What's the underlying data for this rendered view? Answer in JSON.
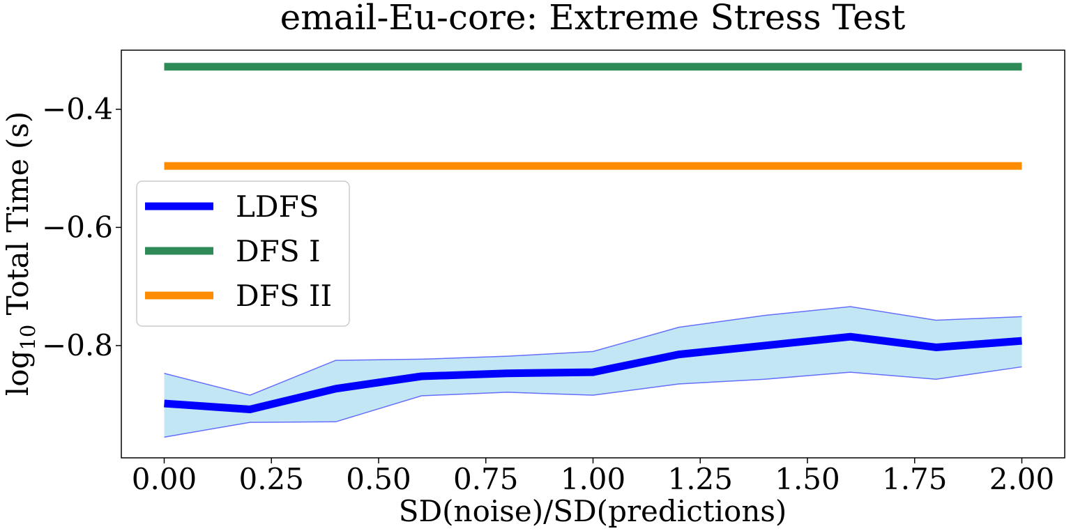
{
  "chart_data": {
    "type": "line",
    "title": "email-Eu-core: Extreme Stress Test",
    "xlabel": "SD(noise)/SD(predictions)",
    "ylabel_prefix": "log",
    "ylabel_subscript": "10",
    "ylabel_suffix": " Total Time (s)",
    "xlim": [
      -0.1,
      2.1
    ],
    "ylim": [
      -0.99,
      -0.3
    ],
    "xticks": [
      0.0,
      0.25,
      0.5,
      0.75,
      1.0,
      1.25,
      1.5,
      1.75,
      2.0
    ],
    "xtick_labels": [
      "0.00",
      "0.25",
      "0.50",
      "0.75",
      "1.00",
      "1.25",
      "1.50",
      "1.75",
      "2.00"
    ],
    "yticks": [
      -0.4,
      -0.6,
      -0.8
    ],
    "ytick_labels": [
      "−0.4",
      "−0.6",
      "−0.8"
    ],
    "x": [
      0.0,
      0.2,
      0.4,
      0.6,
      0.8,
      1.0,
      1.2,
      1.4,
      1.6,
      1.8,
      2.0
    ],
    "series": [
      {
        "name": "LDFS",
        "color": "#0000ff",
        "values": [
          -0.898,
          -0.908,
          -0.873,
          -0.852,
          -0.847,
          -0.845,
          -0.815,
          -0.8,
          -0.785,
          -0.803,
          -0.792
        ],
        "band_upper": [
          -0.847,
          -0.884,
          -0.825,
          -0.823,
          -0.818,
          -0.81,
          -0.769,
          -0.749,
          -0.734,
          -0.757,
          -0.751
        ],
        "band_lower": [
          -0.955,
          -0.93,
          -0.929,
          -0.885,
          -0.879,
          -0.884,
          -0.865,
          -0.857,
          -0.845,
          -0.857,
          -0.836
        ],
        "band_color": "#87ceeb"
      },
      {
        "name": "DFS I",
        "color": "#2e8b57",
        "values": [
          -0.328,
          -0.328,
          -0.328,
          -0.328,
          -0.328,
          -0.328,
          -0.328,
          -0.328,
          -0.328,
          -0.328,
          -0.328
        ]
      },
      {
        "name": "DFS II",
        "color": "#ff8c00",
        "values": [
          -0.496,
          -0.496,
          -0.496,
          -0.496,
          -0.496,
          -0.496,
          -0.496,
          -0.496,
          -0.496,
          -0.496,
          -0.496
        ]
      }
    ],
    "legend": {
      "position": "center-left",
      "entries": [
        "LDFS",
        "DFS I",
        "DFS II"
      ]
    },
    "grid": false
  }
}
